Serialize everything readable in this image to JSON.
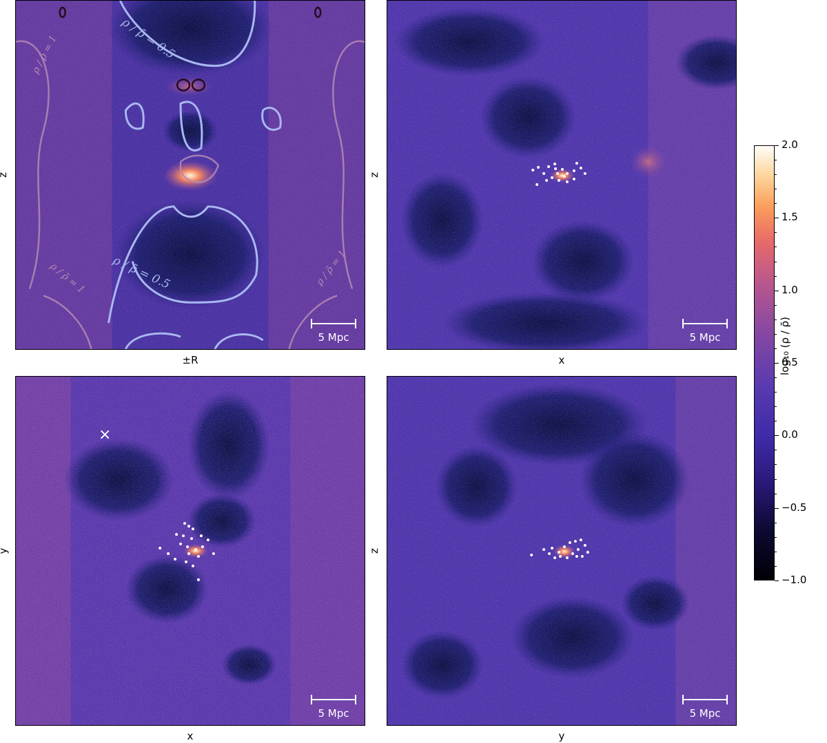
{
  "panels": [
    {
      "xlabel": "±R",
      "ylabel": "z",
      "scale": "5 Mpc"
    },
    {
      "xlabel": "x",
      "ylabel": "z",
      "scale": "5 Mpc"
    },
    {
      "xlabel": "x",
      "ylabel": "y",
      "scale": "5 Mpc"
    },
    {
      "xlabel": "y",
      "ylabel": "z",
      "scale": "5 Mpc"
    }
  ],
  "contours": {
    "half": "ρ / ρ̄ = 0.5",
    "one": "ρ / ρ̄ = 1"
  },
  "marker": "×",
  "colorbar": {
    "title": "log₁₀ (ρ / ρ̄)",
    "ticks": [
      "2.0",
      "1.5",
      "1.0",
      "0.5",
      "0.0",
      "−0.5",
      "−1.0"
    ],
    "range": [
      -1.0,
      2.0
    ]
  }
}
